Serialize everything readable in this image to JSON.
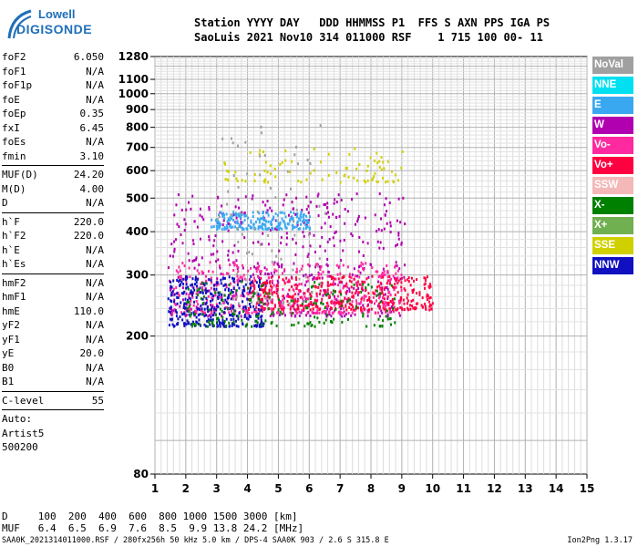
{
  "logo": {
    "line1": "Lowell",
    "line2": "DIGISONDE"
  },
  "header": {
    "line1": "Station YYYY DAY   DDD HHMMSS P1  FFS S AXN PPS IGA PS",
    "line2": "SaoLuis 2021 Nov10 314 011000 RSF    1 715 100 00- 11"
  },
  "params": [
    {
      "label": "foF2",
      "value": "6.050"
    },
    {
      "label": "foF1",
      "value": "N/A"
    },
    {
      "label": "foF1p",
      "value": "N/A"
    },
    {
      "label": "foE",
      "value": "N/A"
    },
    {
      "label": "foEp",
      "value": "0.35"
    },
    {
      "label": "fxI",
      "value": "6.45"
    },
    {
      "label": "foEs",
      "value": "N/A"
    },
    {
      "label": "fmin",
      "value": "3.10"
    },
    {
      "sep": true
    },
    {
      "label": "MUF(D)",
      "value": "24.20"
    },
    {
      "label": "M(D)",
      "value": "4.00"
    },
    {
      "label": "D",
      "value": "N/A"
    },
    {
      "sep": true
    },
    {
      "label": "h`F",
      "value": "220.0"
    },
    {
      "label": "h`F2",
      "value": "220.0"
    },
    {
      "label": "h`E",
      "value": "N/A"
    },
    {
      "label": "h`Es",
      "value": "N/A"
    },
    {
      "sep": true
    },
    {
      "label": "hmF2",
      "value": "N/A"
    },
    {
      "label": "hmF1",
      "value": "N/A"
    },
    {
      "label": "hmE",
      "value": "110.0"
    },
    {
      "label": "yF2",
      "value": "N/A"
    },
    {
      "label": "yF1",
      "value": "N/A"
    },
    {
      "label": "yE",
      "value": "20.0"
    },
    {
      "label": "B0",
      "value": "N/A"
    },
    {
      "label": "B1",
      "value": "N/A"
    },
    {
      "sep": true
    },
    {
      "label": "C-level",
      "value": "55"
    },
    {
      "sep": true
    },
    {
      "label": "Auto:",
      "value": ""
    },
    {
      "label": "Artist5",
      "value": ""
    },
    {
      "label": "500200",
      "value": ""
    }
  ],
  "legend": [
    {
      "label": "NoVal",
      "color": "#a0a0a0"
    },
    {
      "label": "NNE",
      "color": "#00e0f0"
    },
    {
      "label": "E",
      "color": "#3aa8f0"
    },
    {
      "label": "W",
      "color": "#b000b0"
    },
    {
      "label": "Vo-",
      "color": "#ff2aa0"
    },
    {
      "label": "Vo+",
      "color": "#ff0040"
    },
    {
      "label": "SSW",
      "color": "#f4b8b8"
    },
    {
      "label": "X-",
      "color": "#008000"
    },
    {
      "label": "X+",
      "color": "#70b050"
    },
    {
      "label": "SSE",
      "color": "#d0d000"
    },
    {
      "label": "NNW",
      "color": "#1010c0"
    }
  ],
  "footer": {
    "d_line": "D     100  200  400  600  800 1000 1500 3000 [km]",
    "muf_line": "MUF   6.4  6.5  6.9  7.6  8.5  9.9 13.8 24.2 [MHz]",
    "file_line": "SAA0K_2021314011000.RSF / 280fx256h 50 kHz 5.0 km / DPS-4 SAA0K 903 / 2.6 S 315.8 E",
    "version": "Ion2Png 1.3.17"
  },
  "chart_data": {
    "type": "scatter",
    "xlabel": "",
    "ylabel": "",
    "xlim": [
      1,
      15
    ],
    "ylim": [
      80,
      1280
    ],
    "x_ticks": [
      "1",
      "2",
      "3",
      "4",
      "5",
      "6",
      "7",
      "8",
      "9",
      "10",
      "11",
      "12",
      "13",
      "14",
      "15"
    ],
    "y_ticks": [
      "80",
      "200",
      "300",
      "400",
      "500",
      "600",
      "700",
      "800",
      "900",
      "1000",
      "1100",
      "1280"
    ],
    "y_scale": "log",
    "grid": true,
    "series": [
      {
        "color": "#b000b0",
        "x_range": [
          1.4,
          9.1
        ],
        "y_range": [
          230,
          520
        ],
        "density": 0.55
      },
      {
        "color": "#ff2aa0",
        "x_range": [
          1.5,
          9.0
        ],
        "y_range": [
          235,
          330
        ],
        "density": 0.5
      },
      {
        "color": "#ff0040",
        "x_range": [
          4.0,
          10.0
        ],
        "y_range": [
          240,
          300
        ],
        "density": 0.4
      },
      {
        "color": "#1010c0",
        "x_range": [
          1.4,
          4.5
        ],
        "y_range": [
          215,
          300
        ],
        "density": 0.35
      },
      {
        "color": "#3aa8f0",
        "x_range": [
          2.8,
          6.0
        ],
        "y_range": [
          410,
          460
        ],
        "density": 0.25
      },
      {
        "color": "#008000",
        "x_range": [
          2.0,
          8.8
        ],
        "y_range": [
          215,
          290
        ],
        "density": 0.2
      },
      {
        "color": "#d0d000",
        "x_range": [
          3.2,
          9.0
        ],
        "y_range": [
          560,
          700
        ],
        "density": 0.1
      },
      {
        "color": "#a0a0a0",
        "x_range": [
          3.0,
          6.5
        ],
        "y_range": [
          250,
          830
        ],
        "density": 0.08
      }
    ]
  }
}
